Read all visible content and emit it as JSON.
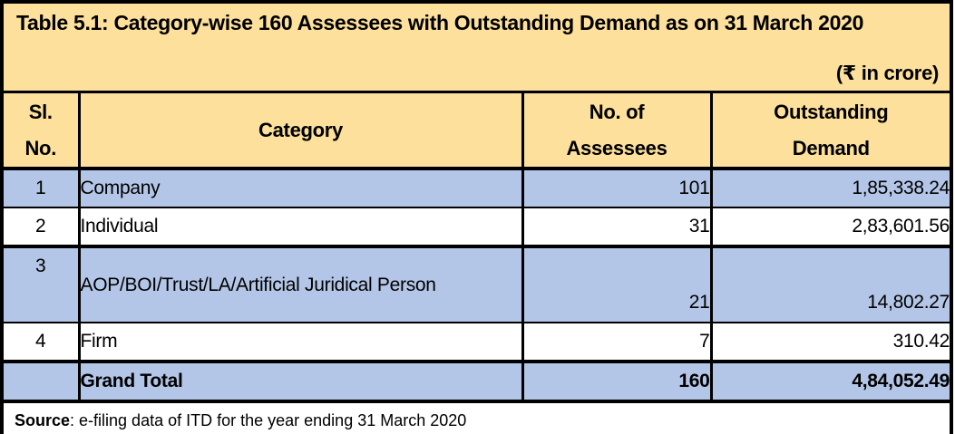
{
  "title": "Table 5.1: Category-wise 160 Assessees with Outstanding Demand as on 31 March 2020",
  "unit_note": "(₹ in crore)",
  "columns": {
    "sl_no": "Sl.\nNo.",
    "category": "Category",
    "assessees": "No. of\nAssessees",
    "demand": "Outstanding\nDemand"
  },
  "rows": [
    {
      "sl": "1",
      "category": "Company",
      "assessees": "101",
      "demand": "1,85,338.24"
    },
    {
      "sl": "2",
      "category": "Individual",
      "assessees": "31",
      "demand": "2,83,601.56"
    },
    {
      "sl": "3",
      "category": "AOP/BOI/Trust/LA/Artificial Juridical Person",
      "assessees": "21",
      "demand": "14,802.27"
    },
    {
      "sl": "4",
      "category": "Firm",
      "assessees": "7",
      "demand": "310.42"
    }
  ],
  "grand_total": {
    "sl": "",
    "label": "Grand Total",
    "assessees": "160",
    "demand": "4,84,052.49"
  },
  "source": {
    "label": "Source",
    "text": ": e-filing data of ITD for the year ending 31 March 2020"
  },
  "colors": {
    "header_bg": "#FCE09B",
    "band_row_bg": "#B4C6E7",
    "plain_row_bg": "#FFFFFF",
    "border": "#000000",
    "text": "#000000"
  }
}
